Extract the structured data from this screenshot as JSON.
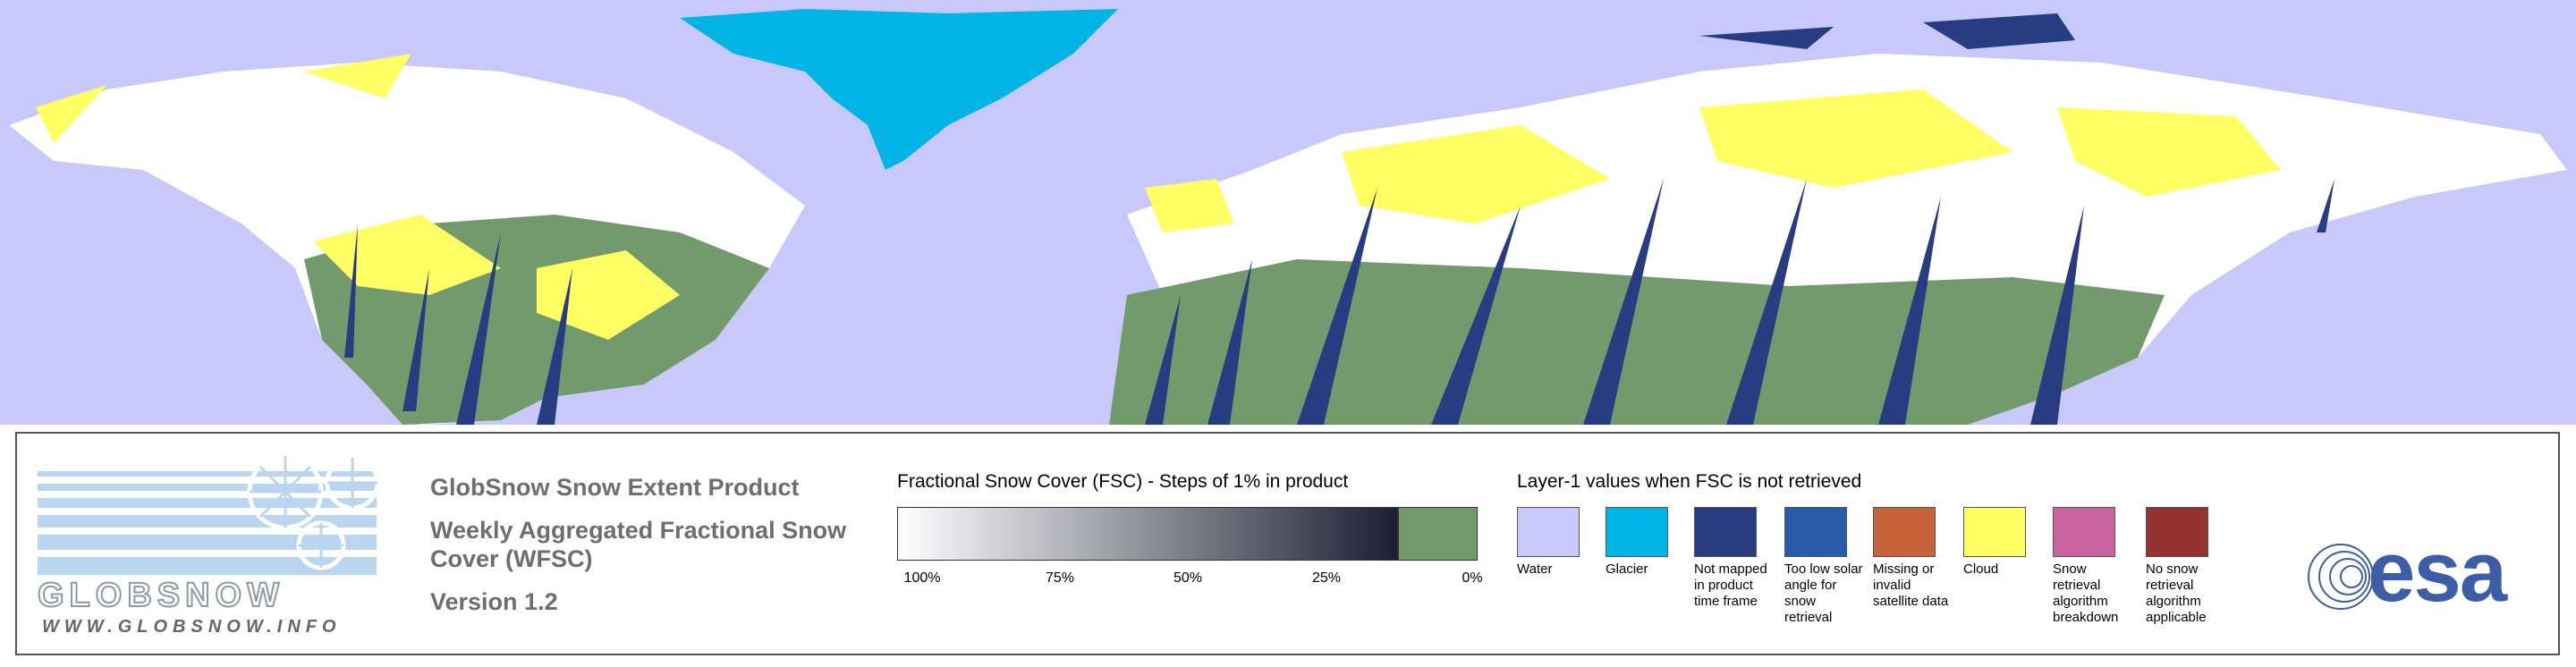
{
  "logo": {
    "name": "GLOBSNOW",
    "url": "WWW.GLOBSNOW.INFO"
  },
  "product": {
    "title": "GlobSnow Snow Extent Product",
    "subtitle": "Weekly Aggregated Fractional Snow Cover (WFSC)",
    "version": "Version 1.2"
  },
  "fsc_legend": {
    "title": "Fractional Snow Cover (FSC) - Steps of 1% in product",
    "ticks": [
      "100%",
      "75%",
      "50%",
      "25%",
      "0%"
    ],
    "start_color": "#ffffff",
    "end_color": "#1e1e32",
    "zero_color": "#739a6c"
  },
  "layer1_legend": {
    "title": "Layer-1 values when FSC is not retrieved",
    "items": [
      {
        "label": "Water",
        "color": "#c8c8fa"
      },
      {
        "label": "Glacier",
        "color": "#00b4e6"
      },
      {
        "label": "Not mapped in product time frame",
        "color": "#283c82"
      },
      {
        "label": "Too low solar angle for snow retrieval",
        "color": "#285aaa"
      },
      {
        "label": "Missing or invalid satellite data",
        "color": "#c8643c"
      },
      {
        "label": "Cloud",
        "color": "#ffff64"
      },
      {
        "label": "Snow retrieval algorithm breakdown",
        "color": "#c864a0"
      },
      {
        "label": "No snow retrieval algorithm applicable",
        "color": "#963232"
      }
    ]
  },
  "esa": "esa"
}
